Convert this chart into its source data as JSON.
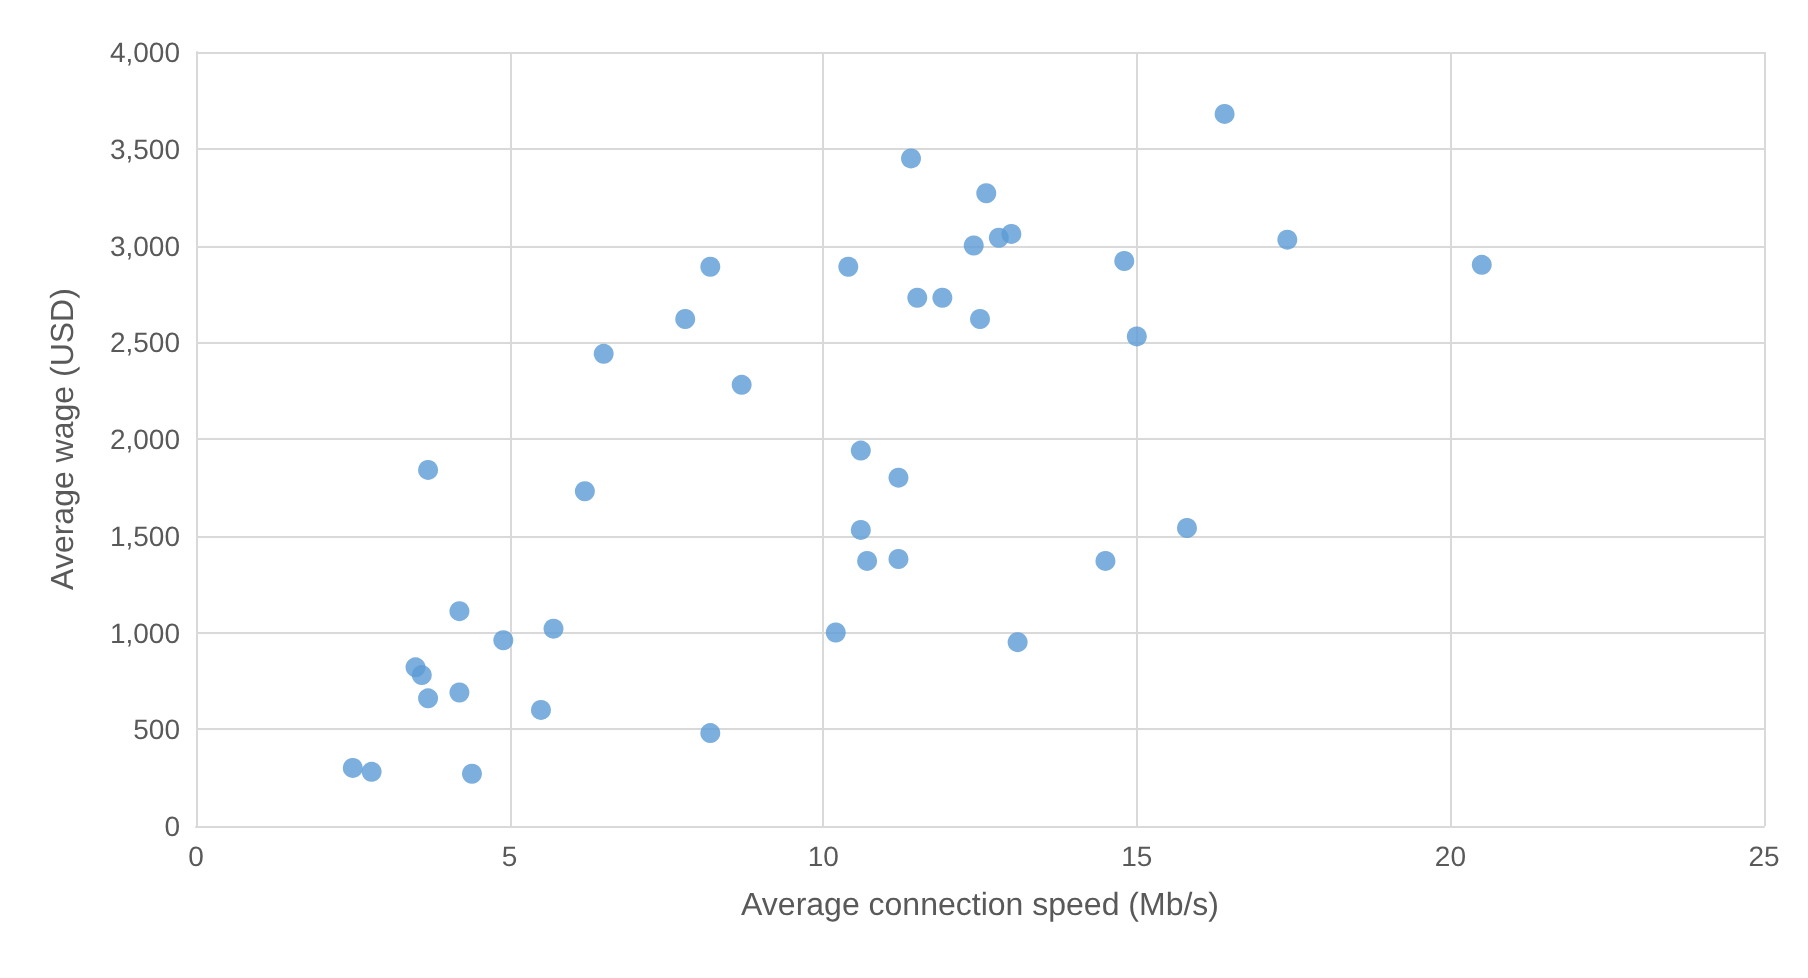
{
  "chart_data": {
    "type": "scatter",
    "xlabel": "Average connection speed (Mb/s)",
    "ylabel": "Average wage (USD)",
    "x": [
      2.5,
      2.8,
      4.4,
      3.5,
      3.6,
      3.7,
      4.2,
      4.2,
      3.7,
      4.9,
      5.5,
      5.7,
      6.2,
      6.5,
      7.8,
      8.2,
      8.7,
      8.2,
      10.2,
      10.4,
      10.6,
      10.6,
      10.7,
      11.2,
      11.2,
      11.4,
      11.5,
      11.9,
      12.4,
      12.5,
      12.6,
      12.8,
      13.0,
      13.1,
      15.0,
      14.8,
      14.5,
      15.8,
      16.4,
      17.4,
      20.5
    ],
    "series": [
      {
        "color": "#5b9bd5",
        "values": [
          300,
          280,
          270,
          820,
          780,
          660,
          690,
          1110,
          1840,
          960,
          600,
          1020,
          1730,
          2440,
          2620,
          2890,
          2280,
          480,
          1000,
          2890,
          1940,
          1530,
          1370,
          1380,
          1800,
          3450,
          2730,
          2730,
          3000,
          2620,
          3270,
          3040,
          3060,
          950,
          2530,
          2920,
          1370,
          1540,
          3680,
          3030,
          2900
        ]
      }
    ],
    "xlim": [
      0,
      25
    ],
    "xticks": [
      0,
      5,
      10,
      15,
      20,
      25
    ],
    "ylim": [
      0,
      4000
    ],
    "yticks": [
      0,
      500,
      {
        "value": 1000,
        "label": "1,000"
      },
      {
        "value": 1500,
        "label": "1,500"
      },
      {
        "value": 2000,
        "label": "2,000"
      },
      {
        "value": 2500,
        "label": "2,500"
      },
      {
        "value": 3000,
        "label": "3,000"
      },
      {
        "value": 3500,
        "label": "3,500"
      },
      {
        "value": 4000,
        "label": "4,000"
      }
    ],
    "grid": true,
    "marker": "circle"
  }
}
